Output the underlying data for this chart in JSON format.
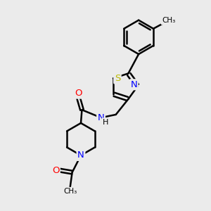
{
  "bg_color": "#ebebeb",
  "bond_color": "#000000",
  "bond_width": 1.8,
  "atom_colors": {
    "N": "#0000ff",
    "O": "#ff0000",
    "S": "#bbbb00",
    "C": "#000000",
    "H": "#000000"
  },
  "figsize": [
    3.0,
    3.0
  ],
  "dpi": 100,
  "xlim": [
    0,
    10
  ],
  "ylim": [
    0,
    10
  ]
}
